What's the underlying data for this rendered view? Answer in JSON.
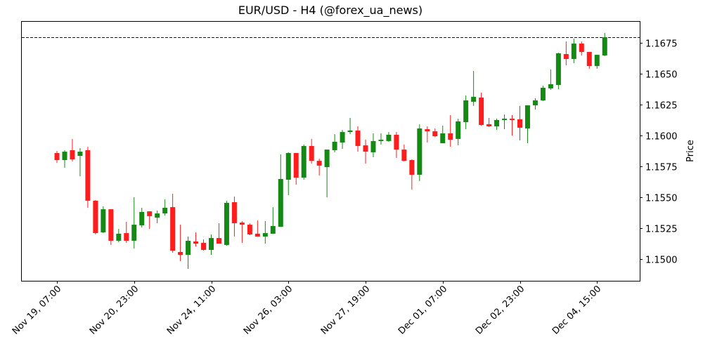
{
  "chart_data": {
    "type": "candlestick",
    "title": "EUR/USD - H4 (@forex_ua_news)",
    "xlabel": "",
    "ylabel": "Price",
    "ylim": [
      1.1482,
      1.169
    ],
    "y_ticks": [
      "1.1500",
      "1.1525",
      "1.1550",
      "1.1575",
      "1.1600",
      "1.1625",
      "1.1650",
      "1.1675"
    ],
    "x_ticks": [
      {
        "label": "Nov 19, 07:00",
        "index": 0
      },
      {
        "label": "Nov 20, 23:00",
        "index": 10
      },
      {
        "label": "Nov 24, 11:00",
        "index": 20
      },
      {
        "label": "Nov 26, 03:00",
        "index": 30
      },
      {
        "label": "Nov 27, 19:00",
        "index": 40
      },
      {
        "label": "Dec 01, 07:00",
        "index": 50
      },
      {
        "label": "Dec 02, 23:00",
        "index": 60
      },
      {
        "label": "Dec 04, 15:00",
        "index": 70
      }
    ],
    "grid": false,
    "reference_line": {
      "value": 1.16795,
      "style": "dashed",
      "color": "#0000cc"
    },
    "colors": {
      "up": "#148a14",
      "down": "#ff1c1c"
    },
    "candles": [
      {
        "o": 1.15858,
        "h": 1.15875,
        "l": 1.15778,
        "c": 1.15801
      },
      {
        "o": 1.15801,
        "h": 1.15881,
        "l": 1.15739,
        "c": 1.15869
      },
      {
        "o": 1.15881,
        "h": 1.15971,
        "l": 1.1579,
        "c": 1.15807
      },
      {
        "o": 1.15835,
        "h": 1.15898,
        "l": 1.1567,
        "c": 1.15869
      },
      {
        "o": 1.15881,
        "h": 1.15909,
        "l": 1.15415,
        "c": 1.15472
      },
      {
        "o": 1.15472,
        "h": 1.15477,
        "l": 1.15199,
        "c": 1.1521
      },
      {
        "o": 1.15216,
        "h": 1.15426,
        "l": 1.1521,
        "c": 1.15403
      },
      {
        "o": 1.15403,
        "h": 1.15403,
        "l": 1.15114,
        "c": 1.15148
      },
      {
        "o": 1.15148,
        "h": 1.15244,
        "l": 1.15136,
        "c": 1.15205
      },
      {
        "o": 1.1521,
        "h": 1.15301,
        "l": 1.15131,
        "c": 1.15148
      },
      {
        "o": 1.15148,
        "h": 1.155,
        "l": 1.15085,
        "c": 1.15278
      },
      {
        "o": 1.15273,
        "h": 1.15415,
        "l": 1.15256,
        "c": 1.15381
      },
      {
        "o": 1.15386,
        "h": 1.15386,
        "l": 1.15244,
        "c": 1.15347
      },
      {
        "o": 1.15335,
        "h": 1.15392,
        "l": 1.1529,
        "c": 1.15369
      },
      {
        "o": 1.15369,
        "h": 1.15483,
        "l": 1.15352,
        "c": 1.15415
      },
      {
        "o": 1.1542,
        "h": 1.15528,
        "l": 1.15051,
        "c": 1.15068
      },
      {
        "o": 1.15057,
        "h": 1.15278,
        "l": 1.14983,
        "c": 1.15034
      },
      {
        "o": 1.15034,
        "h": 1.15182,
        "l": 1.1492,
        "c": 1.15148
      },
      {
        "o": 1.15142,
        "h": 1.15216,
        "l": 1.15102,
        "c": 1.15125
      },
      {
        "o": 1.15131,
        "h": 1.15159,
        "l": 1.15068,
        "c": 1.15074
      },
      {
        "o": 1.15074,
        "h": 1.15199,
        "l": 1.15034,
        "c": 1.1517
      },
      {
        "o": 1.1517,
        "h": 1.1529,
        "l": 1.15125,
        "c": 1.15125
      },
      {
        "o": 1.15114,
        "h": 1.15472,
        "l": 1.15108,
        "c": 1.15455
      },
      {
        "o": 1.1546,
        "h": 1.15506,
        "l": 1.15182,
        "c": 1.1529
      },
      {
        "o": 1.15295,
        "h": 1.15307,
        "l": 1.15131,
        "c": 1.15278
      },
      {
        "o": 1.15278,
        "h": 1.1529,
        "l": 1.15193,
        "c": 1.15199
      },
      {
        "o": 1.15205,
        "h": 1.15312,
        "l": 1.15182,
        "c": 1.15182
      },
      {
        "o": 1.15182,
        "h": 1.15307,
        "l": 1.15125,
        "c": 1.1521
      },
      {
        "o": 1.15205,
        "h": 1.1542,
        "l": 1.15205,
        "c": 1.15267
      },
      {
        "o": 1.15261,
        "h": 1.15847,
        "l": 1.15261,
        "c": 1.15648
      },
      {
        "o": 1.15642,
        "h": 1.15864,
        "l": 1.15517,
        "c": 1.15858
      },
      {
        "o": 1.15858,
        "h": 1.15858,
        "l": 1.15602,
        "c": 1.15659
      },
      {
        "o": 1.15659,
        "h": 1.15926,
        "l": 1.15642,
        "c": 1.15915
      },
      {
        "o": 1.15915,
        "h": 1.15972,
        "l": 1.15773,
        "c": 1.15795
      },
      {
        "o": 1.15795,
        "h": 1.15812,
        "l": 1.15676,
        "c": 1.15756
      },
      {
        "o": 1.15744,
        "h": 1.15881,
        "l": 1.155,
        "c": 1.15886
      },
      {
        "o": 1.15881,
        "h": 1.16011,
        "l": 1.15864,
        "c": 1.15949
      },
      {
        "o": 1.15943,
        "h": 1.16045,
        "l": 1.15892,
        "c": 1.16028
      },
      {
        "o": 1.16028,
        "h": 1.16142,
        "l": 1.16011,
        "c": 1.1604
      },
      {
        "o": 1.1604,
        "h": 1.16074,
        "l": 1.15869,
        "c": 1.15915
      },
      {
        "o": 1.1592,
        "h": 1.15966,
        "l": 1.15773,
        "c": 1.15869
      },
      {
        "o": 1.15864,
        "h": 1.16017,
        "l": 1.15824,
        "c": 1.15955
      },
      {
        "o": 1.15955,
        "h": 1.16017,
        "l": 1.15926,
        "c": 1.15966
      },
      {
        "o": 1.15955,
        "h": 1.16028,
        "l": 1.15949,
        "c": 1.16006
      },
      {
        "o": 1.16006,
        "h": 1.16028,
        "l": 1.15818,
        "c": 1.15886
      },
      {
        "o": 1.15886,
        "h": 1.15926,
        "l": 1.1579,
        "c": 1.15795
      },
      {
        "o": 1.15801,
        "h": 1.15807,
        "l": 1.15562,
        "c": 1.15682
      },
      {
        "o": 1.15682,
        "h": 1.16091,
        "l": 1.15631,
        "c": 1.16057
      },
      {
        "o": 1.16051,
        "h": 1.16074,
        "l": 1.15943,
        "c": 1.16034
      },
      {
        "o": 1.16034,
        "h": 1.16057,
        "l": 1.15989,
        "c": 1.15994
      },
      {
        "o": 1.15937,
        "h": 1.1608,
        "l": 1.15937,
        "c": 1.16017
      },
      {
        "o": 1.16017,
        "h": 1.16165,
        "l": 1.15909,
        "c": 1.15966
      },
      {
        "o": 1.15972,
        "h": 1.16136,
        "l": 1.1592,
        "c": 1.16114
      },
      {
        "o": 1.16108,
        "h": 1.16324,
        "l": 1.16051,
        "c": 1.16284
      },
      {
        "o": 1.16273,
        "h": 1.16523,
        "l": 1.16239,
        "c": 1.16313
      },
      {
        "o": 1.16307,
        "h": 1.16347,
        "l": 1.1608,
        "c": 1.16085
      },
      {
        "o": 1.16091,
        "h": 1.16142,
        "l": 1.16068,
        "c": 1.16074
      },
      {
        "o": 1.16074,
        "h": 1.16136,
        "l": 1.16045,
        "c": 1.16125
      },
      {
        "o": 1.16125,
        "h": 1.1617,
        "l": 1.16051,
        "c": 1.16136
      },
      {
        "o": 1.16136,
        "h": 1.16165,
        "l": 1.16,
        "c": 1.16125
      },
      {
        "o": 1.16131,
        "h": 1.16239,
        "l": 1.1596,
        "c": 1.16063
      },
      {
        "o": 1.16057,
        "h": 1.16244,
        "l": 1.15937,
        "c": 1.16244
      },
      {
        "o": 1.16244,
        "h": 1.16301,
        "l": 1.1621,
        "c": 1.16284
      },
      {
        "o": 1.16284,
        "h": 1.16403,
        "l": 1.16278,
        "c": 1.16386
      },
      {
        "o": 1.16381,
        "h": 1.16534,
        "l": 1.16369,
        "c": 1.16415
      },
      {
        "o": 1.16409,
        "h": 1.1667,
        "l": 1.16375,
        "c": 1.16665
      },
      {
        "o": 1.16659,
        "h": 1.16761,
        "l": 1.16568,
        "c": 1.16619
      },
      {
        "o": 1.16619,
        "h": 1.16784,
        "l": 1.16585,
        "c": 1.16744
      },
      {
        "o": 1.16744,
        "h": 1.16761,
        "l": 1.16648,
        "c": 1.16676
      },
      {
        "o": 1.16676,
        "h": 1.16676,
        "l": 1.1654,
        "c": 1.16562
      },
      {
        "o": 1.16562,
        "h": 1.16653,
        "l": 1.1654,
        "c": 1.16653
      },
      {
        "o": 1.16648,
        "h": 1.1683,
        "l": 1.16642,
        "c": 1.16795
      }
    ]
  }
}
